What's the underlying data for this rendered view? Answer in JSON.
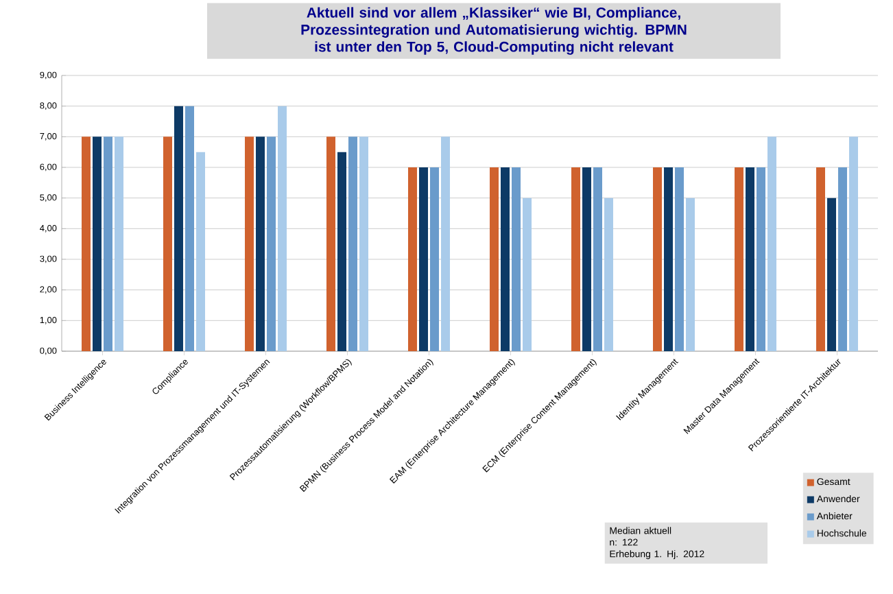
{
  "chart_data": {
    "type": "bar",
    "title": "Aktuell sind vor allem „Klassiker“ wie BI, Compliance, Prozessintegration und Automatisierung wichtig. BPMN ist unter den Top 5, Cloud-Computing nicht relevant",
    "categories": [
      "Business Intelligence",
      "Compliance",
      "Integration von Prozessmanagement und IT-Systemen",
      "Prozessautomatisierung (Workflow/BPMS)",
      "BPMN (Business Process Model and Notation)",
      "EAM (Enterprise Architecture Management)",
      "ECM (Enterprise Content Management)",
      "Identity Management",
      "Master Data Management",
      "Prozessorientierte IT-Architektur"
    ],
    "series": [
      {
        "name": "Gesamt",
        "color": "#d0622e",
        "values": [
          7,
          7,
          7,
          7,
          6,
          6,
          6,
          6,
          6,
          6
        ]
      },
      {
        "name": "Anwender",
        "color": "#0d3a66",
        "values": [
          7,
          8,
          7,
          6.5,
          6,
          6,
          6,
          6,
          6,
          5
        ]
      },
      {
        "name": "Anbieter",
        "color": "#6a9bcb",
        "values": [
          7,
          8,
          7,
          7,
          6,
          6,
          6,
          6,
          6,
          6
        ]
      },
      {
        "name": "Hochschule",
        "color": "#a9cbea",
        "values": [
          7,
          6.5,
          8,
          7,
          7,
          5,
          5,
          5,
          7,
          7
        ]
      }
    ],
    "ylim": [
      0,
      9
    ],
    "yticks": [
      {
        "value": 0,
        "label": "0,00"
      },
      {
        "value": 1,
        "label": "1,00"
      },
      {
        "value": 2,
        "label": "2,00"
      },
      {
        "value": 3,
        "label": "3,00"
      },
      {
        "value": 4,
        "label": "4,00"
      },
      {
        "value": 5,
        "label": "5,00"
      },
      {
        "value": 6,
        "label": "6,00"
      },
      {
        "value": 7,
        "label": "7,00"
      },
      {
        "value": 8,
        "label": "8,00"
      },
      {
        "value": 9,
        "label": "9,00"
      }
    ],
    "grid": "y",
    "legend": "bottom right",
    "annotations": [
      "Median aktuell",
      "n: 122",
      "Erhebung 1. Hj. 2012"
    ]
  }
}
